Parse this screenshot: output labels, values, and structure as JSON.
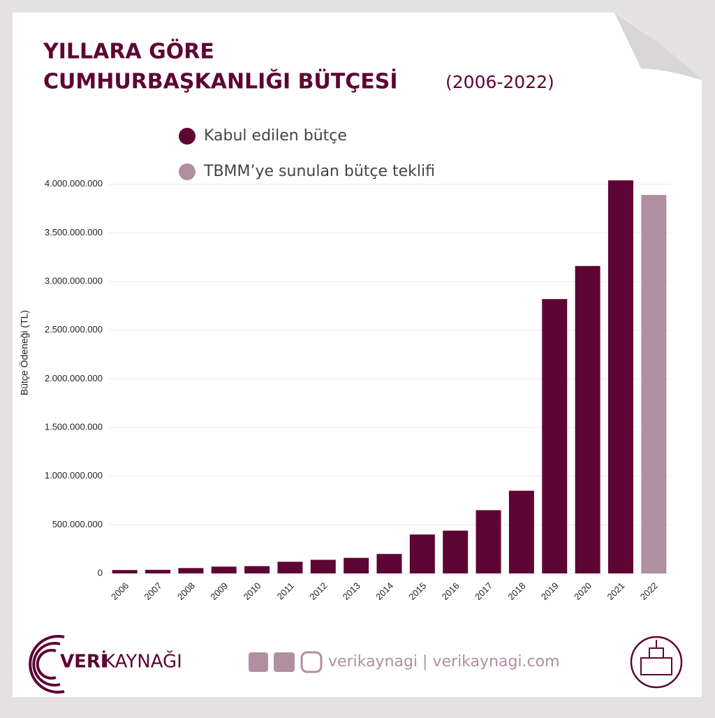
{
  "chart_data": {
    "type": "bar",
    "title_lines": [
      "YILLARA GÖRE",
      "CUMHURBAŞKANLIĞI BÜTÇESİ"
    ],
    "subtitle": "(2006-2022)",
    "y_label": "Bütçe Ödeneği (TL)",
    "categories": [
      "2006",
      "2007",
      "2008",
      "2009",
      "2010",
      "2011",
      "2012",
      "2013",
      "2014",
      "2015",
      "2016",
      "2017",
      "2018",
      "2019",
      "2020",
      "2021",
      "2022"
    ],
    "series": [
      {
        "name": "Kabul edilen bütçe",
        "color": "#5e0533",
        "values": [
          35000000,
          37000000,
          55000000,
          70000000,
          75000000,
          120000000,
          140000000,
          160000000,
          200000000,
          400000000,
          440000000,
          650000000,
          850000000,
          2820000000,
          3160000000,
          4040000000,
          null
        ]
      },
      {
        "name": "TBMM’ye sunulan bütçe teklifi",
        "color": "#b08fa0",
        "values": [
          null,
          null,
          null,
          null,
          null,
          null,
          null,
          null,
          null,
          null,
          null,
          null,
          null,
          null,
          null,
          null,
          3890000000
        ]
      }
    ],
    "ylim": [
      0,
      4300000000
    ],
    "yticks": [
      0,
      {
        "value": 500000000,
        "label": "500.000.000"
      },
      {
        "value": 1000000000,
        "label": "1.000.000.000"
      },
      {
        "value": 1500000000,
        "label": "1.500.000.000"
      },
      {
        "value": 2000000000,
        "label": "2.000.000.000"
      },
      {
        "value": 2500000000,
        "label": "2.500.000.000"
      },
      {
        "value": 3000000000,
        "label": "3.000.000.000"
      },
      {
        "value": 3500000000,
        "label": "3.500.000.000"
      },
      {
        "value": 4000000000,
        "label": "4.000.000.000"
      }
    ],
    "grid": true
  },
  "footer": {
    "brand_bold": "VERİ",
    "brand_light": "KAYNAĞI",
    "social_text": "verikaynagi | verikaynagi.com"
  }
}
